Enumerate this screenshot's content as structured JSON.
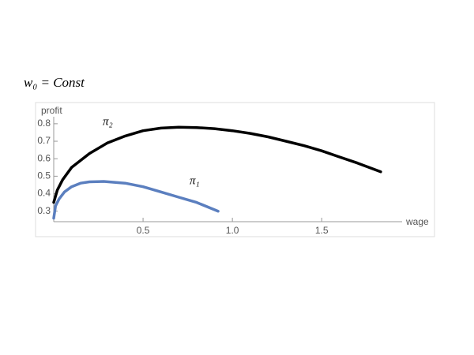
{
  "chart_data": {
    "type": "line",
    "title": "w₀ = Const",
    "x_label": "wage",
    "y_label": "profit",
    "xlim": [
      0,
      1.95
    ],
    "ylim": [
      0.24,
      0.84
    ],
    "xticks": [
      0.5,
      {
        "value": 1,
        "label": "1.0"
      },
      1.5
    ],
    "yticks": [
      0.3,
      0.4,
      0.5,
      0.6,
      0.7,
      0.8
    ],
    "series": [
      {
        "name": "π₂",
        "color": "#000000",
        "x": [
          0,
          0.02,
          0.05,
          0.1,
          0.2,
          0.3,
          0.4,
          0.5,
          0.6,
          0.7,
          0.8,
          0.9,
          1.0,
          1.1,
          1.2,
          1.3,
          1.4,
          1.5,
          1.6,
          1.7,
          1.83
        ],
        "values": [
          0.35,
          0.42,
          0.48,
          0.55,
          0.63,
          0.69,
          0.73,
          0.76,
          0.775,
          0.78,
          0.778,
          0.772,
          0.76,
          0.745,
          0.725,
          0.7,
          0.675,
          0.645,
          0.61,
          0.575,
          0.525
        ]
      },
      {
        "name": "π₁",
        "color": "#5b7fbf",
        "x": [
          0,
          0.01,
          0.03,
          0.06,
          0.1,
          0.15,
          0.2,
          0.28,
          0.4,
          0.5,
          0.6,
          0.7,
          0.8,
          0.92
        ],
        "values": [
          0.26,
          0.33,
          0.37,
          0.41,
          0.44,
          0.46,
          0.468,
          0.47,
          0.46,
          0.44,
          0.41,
          0.38,
          0.35,
          0.3
        ]
      }
    ]
  }
}
